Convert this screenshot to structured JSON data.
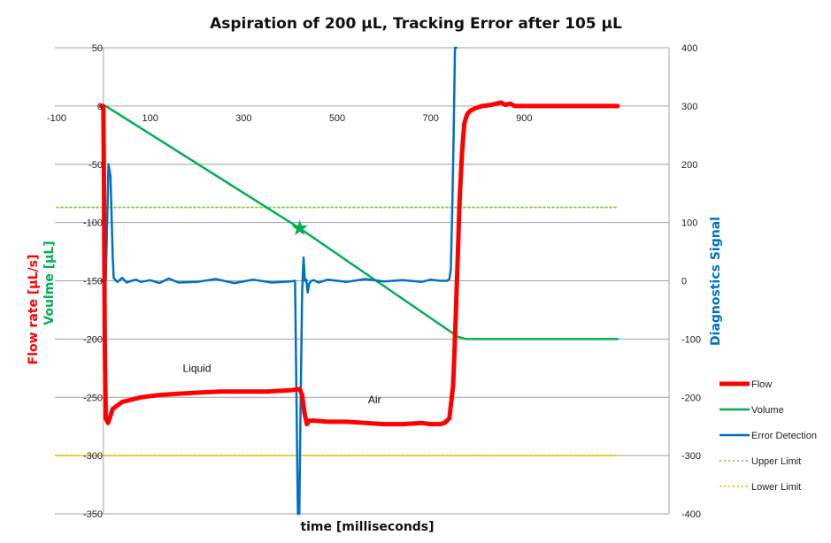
{
  "chart_data": {
    "type": "line",
    "title": "Aspiration of 200 µL, Tracking Error after 105 µL",
    "xlabel": "time [milliseconds]",
    "ylabel_left_parts": [
      {
        "text": "Flow rate [µL/s]",
        "color": "#ff0000"
      },
      {
        "text": "Voulme [µL]",
        "color": "#00b050"
      }
    ],
    "ylabel_right": "Diagnostics Signal",
    "ylabel_right_color": "#0070c0",
    "xlim": [
      -100,
      1100
    ],
    "ylim_left": [
      -350,
      50
    ],
    "ylim_right": [
      -400,
      400
    ],
    "x_ticks": [
      "-100",
      "100",
      "300",
      "500",
      "700",
      "900"
    ],
    "x_tick_values": [
      -100,
      100,
      300,
      500,
      700,
      900
    ],
    "y_left_ticks": [
      "50",
      "0",
      "-50",
      "-100",
      "-150",
      "-200",
      "-250",
      "-300",
      "-350"
    ],
    "y_left_tick_values": [
      50,
      0,
      -50,
      -100,
      -150,
      -200,
      -250,
      -300,
      -350
    ],
    "y_right_ticks": [
      "400",
      "300",
      "200",
      "100",
      "0",
      "-100",
      "-200",
      "-300",
      "-400"
    ],
    "y_right_tick_values": [
      400,
      300,
      200,
      100,
      0,
      -100,
      -200,
      -300,
      -400
    ],
    "grid": true,
    "legend_position": "right",
    "series": [
      {
        "name": "Flow",
        "axis": "left",
        "color": "#ff0000",
        "x": [
          -5,
          0,
          1,
          3,
          5,
          10,
          20,
          40,
          80,
          120,
          160,
          200,
          250,
          300,
          350,
          400,
          420,
          425,
          430,
          435,
          440,
          450,
          480,
          520,
          560,
          600,
          640,
          680,
          700,
          720,
          730,
          740,
          748,
          752,
          757,
          762,
          767,
          772,
          778,
          785,
          795,
          810,
          830,
          850,
          860,
          870,
          880,
          900,
          950,
          1000,
          1050,
          1100
        ],
        "y": [
          0,
          0,
          -60,
          -200,
          -268,
          -272,
          -260,
          -254,
          -250,
          -248,
          -247,
          -246,
          -245,
          -245,
          -245,
          -244,
          -243,
          -248,
          -263,
          -273,
          -270,
          -270,
          -271,
          -271,
          -272,
          -273,
          -273,
          -272,
          -273,
          -273,
          -272,
          -268,
          -240,
          -200,
          -140,
          -80,
          -40,
          -15,
          -7,
          -4,
          -2,
          0,
          1,
          3,
          1,
          2,
          0,
          0,
          0,
          0,
          0,
          0
        ]
      },
      {
        "name": "Volume",
        "axis": "left",
        "color": "#00b050",
        "x": [
          -5,
          5,
          420,
          758,
          775,
          800,
          900,
          1000,
          1100
        ],
        "y": [
          0,
          0,
          -105,
          -198,
          -200,
          -200,
          -200,
          -200,
          -200
        ]
      },
      {
        "name": "Error Detection",
        "axis": "right",
        "color": "#0070c0",
        "x": [
          -5,
          5,
          8,
          11,
          15,
          18,
          20,
          22,
          25,
          30,
          40,
          50,
          60,
          70,
          80,
          100,
          120,
          140,
          160,
          200,
          240,
          280,
          320,
          360,
          400,
          410,
          413,
          416,
          419,
          422,
          425,
          428,
          431,
          434,
          437,
          440,
          445,
          450,
          460,
          480,
          520,
          560,
          600,
          640,
          680,
          700,
          720,
          735,
          740,
          743,
          746,
          749,
          752,
          755
        ],
        "y": [
          0,
          0,
          100,
          200,
          180,
          100,
          40,
          5,
          2,
          -2,
          5,
          -3,
          0,
          2,
          -2,
          1,
          -4,
          4,
          -3,
          -2,
          3,
          -4,
          2,
          -3,
          -1,
          0,
          -200,
          -400,
          -400,
          -200,
          -20,
          40,
          0,
          2,
          -20,
          -5,
          0,
          1,
          -3,
          2,
          -2,
          3,
          -1,
          1,
          -2,
          2,
          0,
          0,
          3,
          20,
          120,
          250,
          400,
          400
        ]
      },
      {
        "name": "Upper Limit",
        "axis": "left",
        "color": "#92d050",
        "dashed": true,
        "x": [
          -100,
          1100
        ],
        "y": [
          -87,
          -87
        ]
      },
      {
        "name": "Lower Limit",
        "axis": "left",
        "color": "#ffc000",
        "dashed": true,
        "x": [
          -100,
          1100
        ],
        "y": [
          -300,
          -300
        ]
      }
    ],
    "marker": {
      "x": 420,
      "y": -105,
      "color": "#00b050",
      "shape": "star"
    },
    "annotations": [
      {
        "text": "Liquid",
        "x": 200,
        "y": -225
      },
      {
        "text": "Air",
        "x": 580,
        "y": -252
      }
    ]
  }
}
